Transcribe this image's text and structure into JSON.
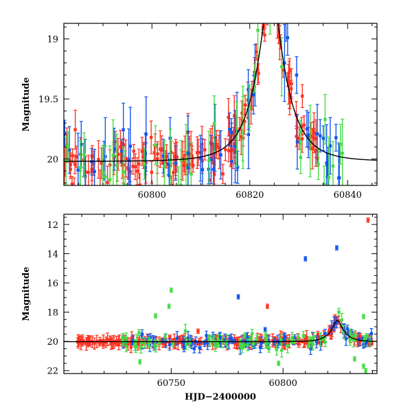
{
  "chart_data": [
    {
      "type": "scatter",
      "panel": "top",
      "ylabel": "Magnitude",
      "xlabel": "",
      "xlim": [
        60782,
        60846
      ],
      "ylim": [
        20.22,
        18.87
      ],
      "y_inverted": true,
      "x_ticks": [
        60800,
        60820,
        60840
      ],
      "y_ticks": [
        19,
        19.5,
        20
      ],
      "model_curve": {
        "type": "microlensing",
        "t0": 60824.3,
        "tE": 6.0,
        "u0": 0.27,
        "baseline": 20.02,
        "color": "#000000"
      },
      "series": [
        {
          "color_name": "red",
          "color": "#ff3322",
          "n_points": 170,
          "y_scatter": 0.18,
          "x_range": [
            60782,
            60834
          ]
        },
        {
          "color_name": "blue",
          "color": "#1155ee",
          "n_points": 60,
          "y_scatter": 0.3,
          "x_range": [
            60782,
            60840
          ]
        },
        {
          "color_name": "green",
          "color": "#44dd44",
          "n_points": 45,
          "y_scatter": 0.45,
          "x_range": [
            60782,
            60840
          ]
        }
      ]
    },
    {
      "type": "scatter",
      "panel": "bottom",
      "ylabel": "Magnitude",
      "xlabel": "HJD−2400000",
      "xlim": [
        60702,
        60842
      ],
      "ylim": [
        22.2,
        11.3
      ],
      "y_inverted": true,
      "x_ticks": [
        60750,
        60800
      ],
      "y_ticks": [
        12,
        14,
        16,
        18,
        20,
        22
      ],
      "model_curve": {
        "type": "microlensing",
        "t0": 60824.3,
        "tE": 6.0,
        "u0": 0.27,
        "baseline": 20.02,
        "color": "#000000"
      },
      "series": [
        {
          "color_name": "red",
          "color": "#ff3322",
          "n_points": 230,
          "x_range": [
            60708,
            60840
          ],
          "outliers": [
            [
              60838,
              11.7
            ],
            [
              60793,
              17.6
            ],
            [
              60762,
              19.3
            ]
          ]
        },
        {
          "color_name": "blue",
          "color": "#1155ee",
          "n_points": 90,
          "x_range": [
            60728,
            60840
          ],
          "outliers": [
            [
              60810,
              14.35
            ],
            [
              60824,
              13.6
            ],
            [
              60780,
              16.95
            ],
            [
              60792,
              19.2
            ]
          ]
        },
        {
          "color_name": "green",
          "color": "#44dd44",
          "n_points": 80,
          "x_range": [
            60728,
            60840
          ],
          "outliers": [
            [
              60750,
              16.5
            ],
            [
              60749,
              17.6
            ],
            [
              60743,
              18.25
            ],
            [
              60736,
              21.4
            ],
            [
              60798,
              21.5
            ],
            [
              60832,
              21.2
            ],
            [
              60836,
              21.7
            ],
            [
              60837,
              22.0
            ],
            [
              60836,
              18.3
            ]
          ]
        }
      ]
    }
  ]
}
